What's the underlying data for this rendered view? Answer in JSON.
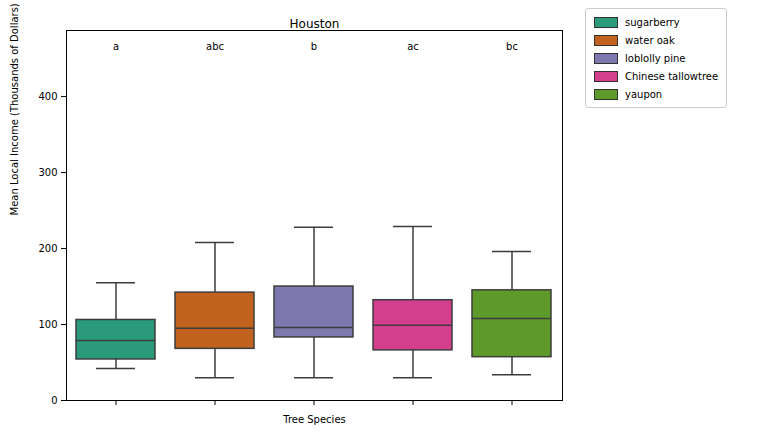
{
  "chart_data": {
    "type": "box",
    "title": "Houston",
    "x_label": "Tree Species",
    "y_label": "Mean Local Income (Thousands of Dollars)",
    "ylim": [
      0,
      487
    ],
    "yticks": [
      0,
      100,
      200,
      300,
      400
    ],
    "grid": false,
    "tick_labels": "y",
    "legend": "right",
    "series": [
      {
        "name": "sugarberry",
        "color": "#2a9a7a",
        "min": 42,
        "q1": 54,
        "median": 79,
        "q3": 106,
        "max": 155,
        "annotation": "a"
      },
      {
        "name": "water oak",
        "color": "#c1631f",
        "min": 30,
        "q1": 68,
        "median": 95,
        "q3": 142,
        "max": 208,
        "annotation": "abc"
      },
      {
        "name": "loblolly pine",
        "color": "#7d78ad",
        "min": 30,
        "q1": 83,
        "median": 96,
        "q3": 150,
        "max": 228,
        "annotation": "b"
      },
      {
        "name": "Chinese tallowtree",
        "color": "#d43f8d",
        "min": 30,
        "q1": 66,
        "median": 99,
        "q3": 132,
        "max": 229,
        "annotation": "ac"
      },
      {
        "name": "yaupon",
        "color": "#5e9a2a",
        "min": 34,
        "q1": 57,
        "median": 108,
        "q3": 145,
        "max": 196,
        "annotation": "bc"
      }
    ]
  }
}
